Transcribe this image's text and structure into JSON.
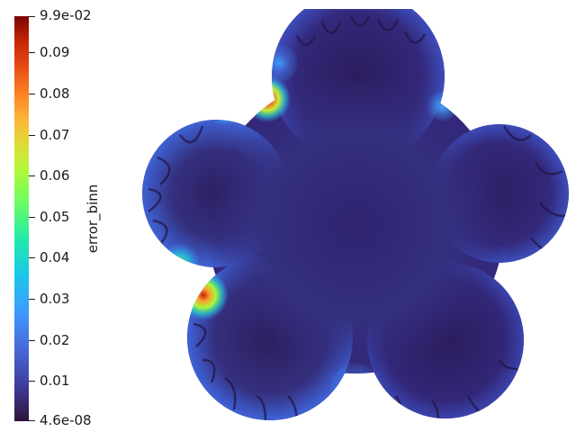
{
  "colorbar": {
    "title": "error_binn",
    "max_label": "9.9e-02",
    "min_label": "4.6e-08",
    "ticks": [
      "0.09",
      "0.08",
      "0.07",
      "0.06",
      "0.05",
      "0.04",
      "0.03",
      "0.02",
      "0.01"
    ]
  },
  "colors": {
    "background": "#ffffff",
    "field_base": "#30206a",
    "colormap_low": "#30123b",
    "colormap_high": "#7a0403"
  }
}
